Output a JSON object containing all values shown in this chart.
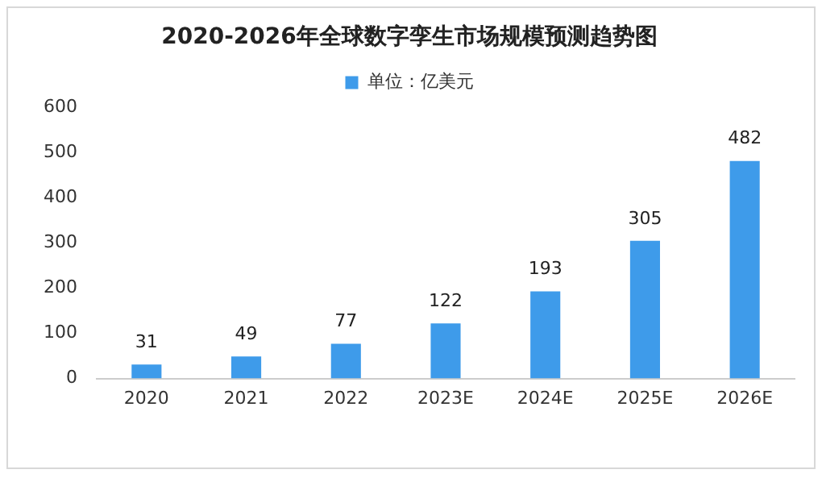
{
  "chart_data": {
    "type": "bar",
    "title": "2020-2026年全球数字孪生市场规模预测趋势图",
    "categories": [
      "2020",
      "2021",
      "2022",
      "2023E",
      "2024E",
      "2025E",
      "2026E"
    ],
    "series": [
      {
        "name": "单位：亿美元",
        "color": "#3e9bea",
        "values": [
          31,
          49,
          77,
          122,
          193,
          305,
          482
        ]
      }
    ],
    "ylim": [
      0,
      600
    ],
    "yticks": [
      0,
      100,
      200,
      300,
      400,
      500,
      600
    ],
    "grid": false,
    "legend": "top",
    "data_labels": true
  }
}
